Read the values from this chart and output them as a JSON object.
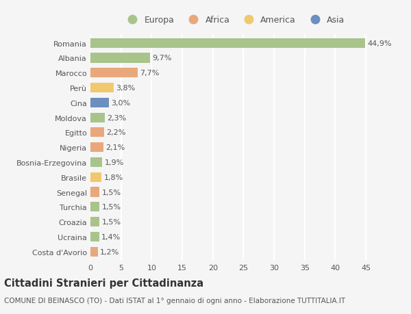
{
  "countries": [
    "Romania",
    "Albania",
    "Marocco",
    "Perù",
    "Cina",
    "Moldova",
    "Egitto",
    "Nigeria",
    "Bosnia-Erzegovina",
    "Brasile",
    "Senegal",
    "Turchia",
    "Croazia",
    "Ucraina",
    "Costa d'Avorio"
  ],
  "values": [
    44.9,
    9.7,
    7.7,
    3.8,
    3.0,
    2.3,
    2.2,
    2.1,
    1.9,
    1.8,
    1.5,
    1.5,
    1.5,
    1.4,
    1.2
  ],
  "labels": [
    "44,9%",
    "9,7%",
    "7,7%",
    "3,8%",
    "3,0%",
    "2,3%",
    "2,2%",
    "2,1%",
    "1,9%",
    "1,8%",
    "1,5%",
    "1,5%",
    "1,5%",
    "1,4%",
    "1,2%"
  ],
  "colors": [
    "#a8c48a",
    "#a8c48a",
    "#e8a87c",
    "#f0c96e",
    "#6b8fbe",
    "#a8c48a",
    "#e8a87c",
    "#e8a87c",
    "#a8c48a",
    "#f0c96e",
    "#e8a87c",
    "#a8c48a",
    "#a8c48a",
    "#a8c48a",
    "#e8a87c"
  ],
  "legend_labels": [
    "Europa",
    "Africa",
    "America",
    "Asia"
  ],
  "legend_colors": [
    "#a8c48a",
    "#e8a87c",
    "#f0c96e",
    "#6b8fbe"
  ],
  "xlim": [
    0,
    47
  ],
  "xticks": [
    0,
    5,
    10,
    15,
    20,
    25,
    30,
    35,
    40,
    45
  ],
  "title": "Cittadini Stranieri per Cittadinanza",
  "subtitle": "COMUNE DI BEINASCO (TO) - Dati ISTAT al 1° gennaio di ogni anno - Elaborazione TUTTITALIA.IT",
  "background_color": "#f5f5f5",
  "bar_height": 0.65,
  "grid_color": "#ffffff",
  "label_fontsize": 8.0,
  "tick_fontsize": 8.0,
  "title_fontsize": 10.5,
  "subtitle_fontsize": 7.5
}
